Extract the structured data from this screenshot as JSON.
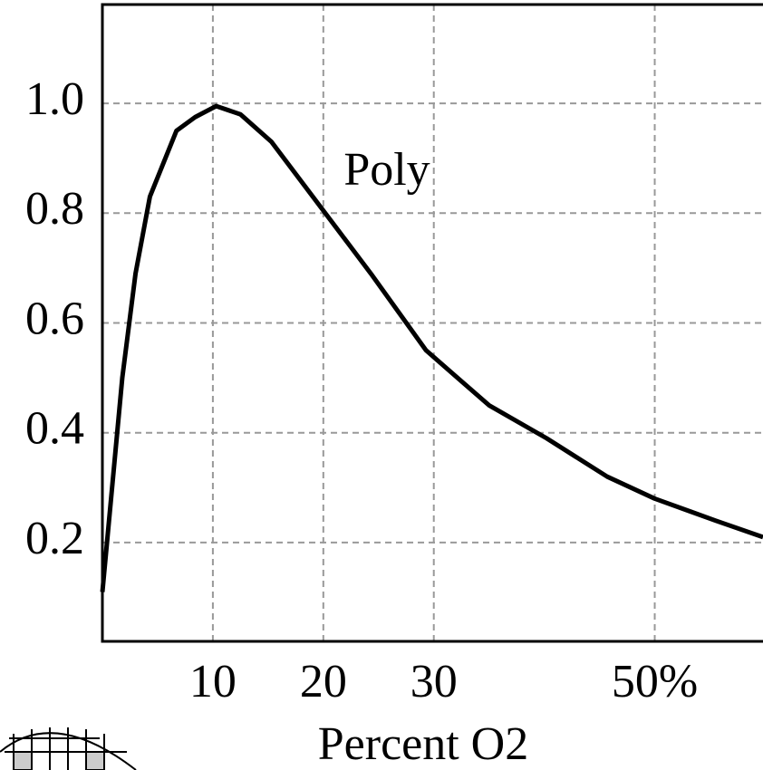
{
  "chart_data": {
    "type": "line",
    "x_label": "Percent O2",
    "annotation": "Poly",
    "xlim": [
      0,
      59.8
    ],
    "ylim": [
      0.02,
      1.18
    ],
    "xticks": [
      10,
      20,
      30,
      {
        "value": 50,
        "label": "50%"
      }
    ],
    "yticks": [
      {
        "value": 1.0,
        "label": "1.0"
      },
      0.8,
      0.6,
      0.4,
      0.2
    ],
    "grid": true,
    "series": [
      {
        "color": "#000000",
        "x": [
          0,
          1.8,
          3.0,
          4.3,
          5.3,
          6.7,
          8.4,
          10.3,
          12.5,
          15.3,
          19.8,
          24.3,
          29.3,
          35,
          40.2,
          45.7,
          50,
          55.5,
          59.8
        ],
        "values": [
          0.11,
          0.5,
          0.69,
          0.83,
          0.88,
          0.95,
          0.975,
          0.995,
          0.98,
          0.93,
          0.81,
          0.69,
          0.55,
          0.45,
          0.39,
          0.32,
          0.28,
          0.24,
          0.21
        ]
      }
    ]
  }
}
